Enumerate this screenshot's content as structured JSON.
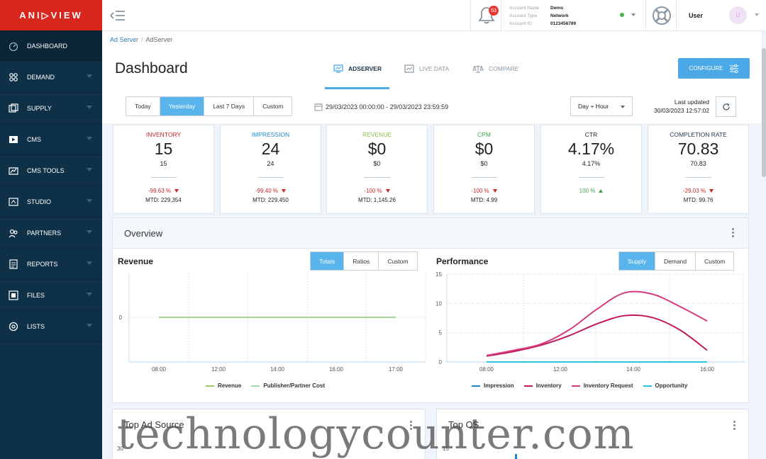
{
  "brand": {
    "logo_text": "ANI▷VIEW",
    "accent": "#d9261c"
  },
  "sidebar": {
    "items": [
      {
        "label": "DASHBOARD",
        "icon": "gauge-icon",
        "active": true
      },
      {
        "label": "DEMAND",
        "icon": "grid-icon"
      },
      {
        "label": "SUPPLY",
        "icon": "supply-icon"
      },
      {
        "label": "CMS",
        "icon": "play-icon"
      },
      {
        "label": "CMS TOOLS",
        "icon": "chart-icon"
      },
      {
        "label": "STUDIO",
        "icon": "studio-icon"
      },
      {
        "label": "PARTNERS",
        "icon": "partners-icon"
      },
      {
        "label": "REPORTS",
        "icon": "report-icon"
      },
      {
        "label": "FILES",
        "icon": "files-icon"
      },
      {
        "label": "LISTS",
        "icon": "lists-icon"
      }
    ]
  },
  "topbar": {
    "notifications": "53",
    "account": {
      "name_label": "Account Name",
      "name": "Demo",
      "type_label": "Account Type",
      "type": "Network",
      "id_label": "Account ID",
      "id": "0123456789"
    },
    "user_label": "User",
    "avatar_initials": "U"
  },
  "header": {
    "breadcrumb": [
      "Ad Server",
      "AdServer"
    ],
    "title": "Dashboard",
    "tabs": [
      "ADSERVER",
      "LIVE DATA",
      "COMPARE"
    ],
    "configure": "CONFIGURE"
  },
  "filter": {
    "ranges": [
      "Today",
      "Yesterday",
      "Last 7 Days",
      "Custom"
    ],
    "date_range": "29/03/2023 00:00:00 - 29/03/2023 23:59:59",
    "granularity": "Day + Hour",
    "last_updated_label": "Last updated",
    "last_updated": "30/03/2023 12:57:02"
  },
  "kpis": [
    {
      "title": "INVENTORY",
      "value": "15",
      "sub": "15",
      "change": "-99.63 %",
      "dir": "down",
      "mtd": "MTD: 229,354",
      "color": "#c62828"
    },
    {
      "title": "IMPRESSION",
      "value": "24",
      "sub": "24",
      "change": "-99.40 %",
      "dir": "down",
      "mtd": "MTD: 229,450",
      "color": "#1e88c7"
    },
    {
      "title": "REVENUE",
      "value": "$0",
      "sub": "$0",
      "change": "-100 %",
      "dir": "down",
      "mtd": "MTD: 1,145.26",
      "color": "#8bc34a"
    },
    {
      "title": "CPM",
      "value": "$0",
      "sub": "$0",
      "change": "-100 %",
      "dir": "down",
      "mtd": "MTD: 4.99",
      "color": "#43a047"
    },
    {
      "title": "CTR",
      "value": "4.17%",
      "sub": "4.17%",
      "change": "100 %",
      "dir": "up",
      "mtd": "",
      "color": "#222222"
    },
    {
      "title": "COMPLETION RATE",
      "value": "70.83",
      "sub": "70.83",
      "change": "-29.03 %",
      "dir": "down",
      "mtd": "MTD: 99.76",
      "color": "#1f3347"
    }
  ],
  "overview": {
    "title": "Overview",
    "revenue": {
      "title": "Revenue",
      "toggles": [
        "Totals",
        "Ratios",
        "Custom"
      ]
    },
    "performance": {
      "title": "Performance",
      "toggles": [
        "Supply",
        "Demand",
        "Custom"
      ]
    }
  },
  "chart_data": [
    {
      "type": "line",
      "title": "Revenue",
      "x": [
        "08:00",
        "12:00",
        "14:00",
        "16:00",
        "17:00"
      ],
      "x_ticks": [
        "08:00",
        "12:00",
        "14:00",
        "16:00",
        "17:00"
      ],
      "y_ticks": [
        "0"
      ],
      "series": [
        {
          "name": "Revenue",
          "color": "#9ccc65",
          "values": [
            0,
            0,
            0,
            0,
            0
          ]
        },
        {
          "name": "Publisher/Partner Cost",
          "color": "#a5d6a7",
          "values": [
            0,
            0,
            0,
            0,
            0
          ]
        }
      ]
    },
    {
      "type": "line",
      "title": "Performance",
      "x_ticks": [
        "08:00",
        "12:00",
        "14:00",
        "16:00"
      ],
      "y_ticks": [
        "0",
        "5",
        "10",
        "15"
      ],
      "ylim": [
        0,
        15
      ],
      "x": [
        0,
        1,
        2,
        3,
        4,
        5,
        6,
        7,
        8
      ],
      "series": [
        {
          "name": "Impression",
          "color": "#1e88c7",
          "values": [
            0,
            0,
            0,
            0,
            0,
            0,
            0,
            0,
            0
          ]
        },
        {
          "name": "Inventory",
          "color": "#c2185b",
          "values": [
            1,
            1.8,
            2.9,
            4.5,
            6.5,
            7.9,
            7.6,
            5.5,
            2
          ]
        },
        {
          "name": "Inventory Request",
          "color": "#d63a7e",
          "values": [
            1.1,
            2,
            3.1,
            5.5,
            9,
            11.8,
            11.6,
            9.5,
            7
          ]
        },
        {
          "name": "Opportunity",
          "color": "#26c6da",
          "values": [
            0,
            0,
            0,
            0,
            0,
            0,
            0,
            0,
            0
          ]
        }
      ]
    }
  ],
  "bottom": {
    "left_title": "Top Ad Source",
    "left_tick": "30",
    "right_title": "Top OS",
    "right_tick": "15"
  },
  "watermark": "technologycounter.com"
}
